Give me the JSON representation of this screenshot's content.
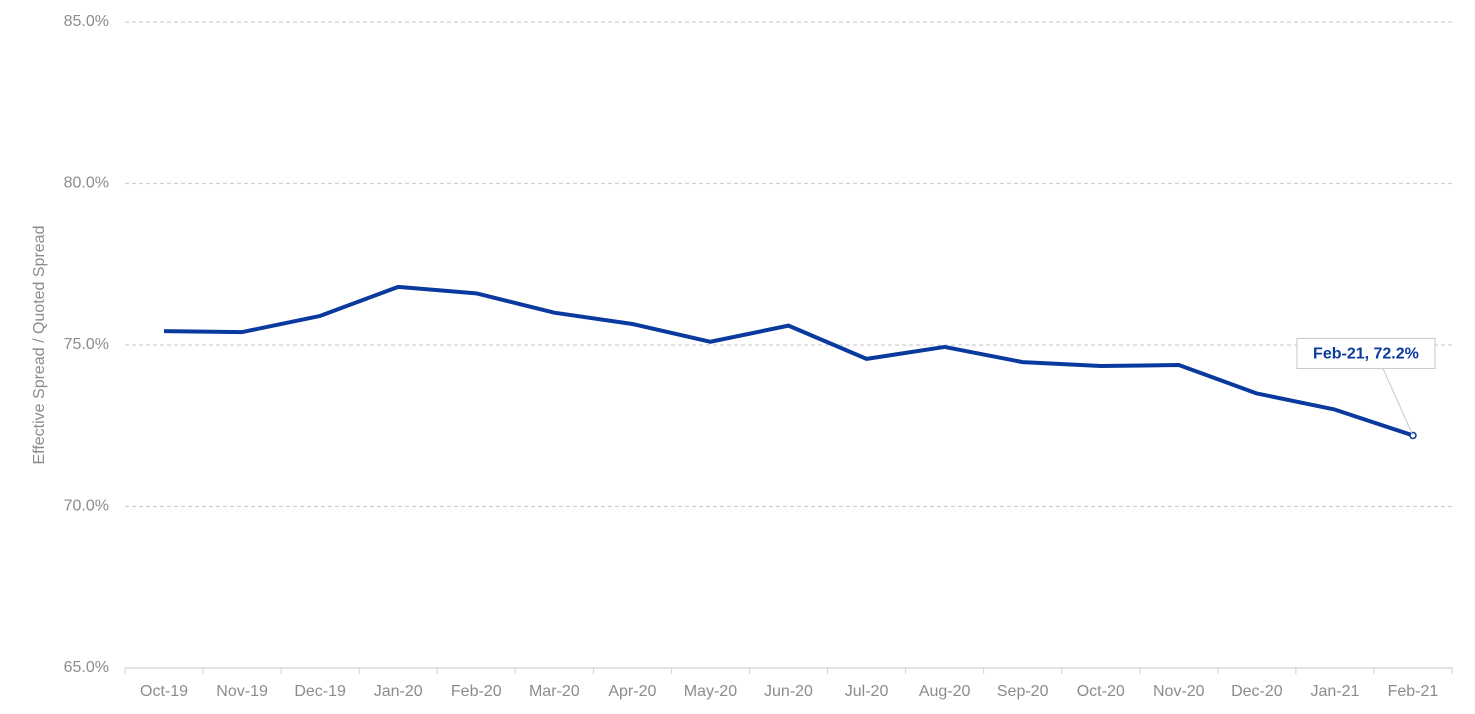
{
  "chart_data": {
    "type": "line",
    "ylabel": "Effective Spread / Quoted Spread",
    "categories": [
      "Oct-19",
      "Nov-19",
      "Dec-19",
      "Jan-20",
      "Feb-20",
      "Mar-20",
      "Apr-20",
      "May-20",
      "Jun-20",
      "Jul-20",
      "Aug-20",
      "Sep-20",
      "Oct-20",
      "Nov-20",
      "Dec-20",
      "Jan-21",
      "Feb-21"
    ],
    "values": [
      75.43,
      75.4,
      75.9,
      76.8,
      76.6,
      76.0,
      75.65,
      75.1,
      75.6,
      74.57,
      74.94,
      74.47,
      74.35,
      74.38,
      73.5,
      73.0,
      72.2
    ],
    "value_labels": [
      null,
      null,
      null,
      null,
      null,
      null,
      null,
      null,
      null,
      null,
      null,
      null,
      null,
      null,
      null,
      null,
      "Feb-21, 72.2%"
    ],
    "color": "#0a3a9e",
    "ylim": [
      65,
      85
    ],
    "yticks": [
      {
        "value": 65,
        "label": "65.0%"
      },
      {
        "value": 70,
        "label": "70.0%"
      },
      {
        "value": 75,
        "label": "75.0%"
      },
      {
        "value": 80,
        "label": "80.0%"
      },
      {
        "value": 85,
        "label": "85.0%"
      }
    ],
    "grid": true
  }
}
